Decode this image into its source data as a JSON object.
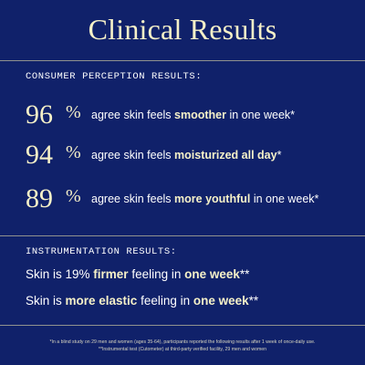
{
  "title": "Clinical Results",
  "consumer": {
    "heading": "CONSUMER PERCEPTION RESULTS:",
    "stats": [
      {
        "value": "96",
        "unit": "%",
        "pre": "agree skin feels ",
        "bold": "smoother",
        "post": " in one week*"
      },
      {
        "value": "94",
        "unit": "%",
        "pre": "agree skin feels ",
        "bold": "moisturized all day",
        "post": "*"
      },
      {
        "value": "89",
        "unit": "%",
        "pre": "agree skin feels ",
        "bold": "more youthful",
        "post": " in one week*"
      }
    ]
  },
  "instrumentation": {
    "heading": "INSTRUMENTATION RESULTS:",
    "results": [
      {
        "pre": "Skin is 19% ",
        "bold1": "firmer",
        "mid": " feeling in ",
        "bold2": "one week",
        "post": "**"
      },
      {
        "pre": "Skin is ",
        "bold1": "more elastic",
        "mid": " feeling in ",
        "bold2": "one week",
        "post": "**"
      }
    ]
  },
  "footnotes": [
    "*In a blind study on 29 men and women (ages 35-64), participants reported the following results after 1 week of once-daily use.",
    "**Instrumental test (Cutometer) at third-party verified facility, 29 men and women"
  ]
}
